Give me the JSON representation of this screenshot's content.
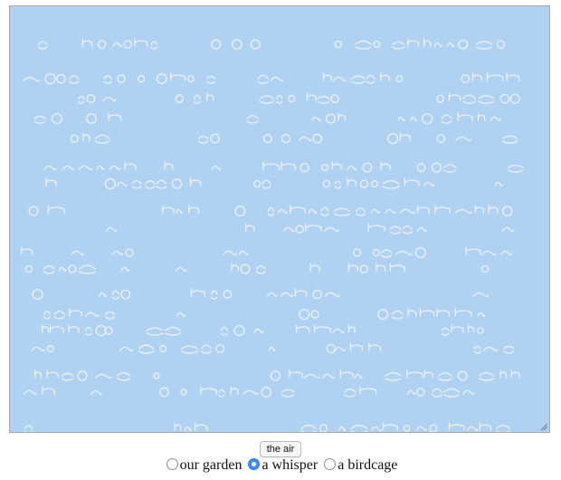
{
  "textarea": {
    "background": "#b0d2f2",
    "glyph_color": "#f1f1ec"
  },
  "action_button": {
    "label": "the air"
  },
  "choices": [
    {
      "label": "our garden",
      "checked": false
    },
    {
      "label": "a whisper",
      "checked": true
    },
    {
      "label": "a birdcage",
      "checked": false
    }
  ]
}
